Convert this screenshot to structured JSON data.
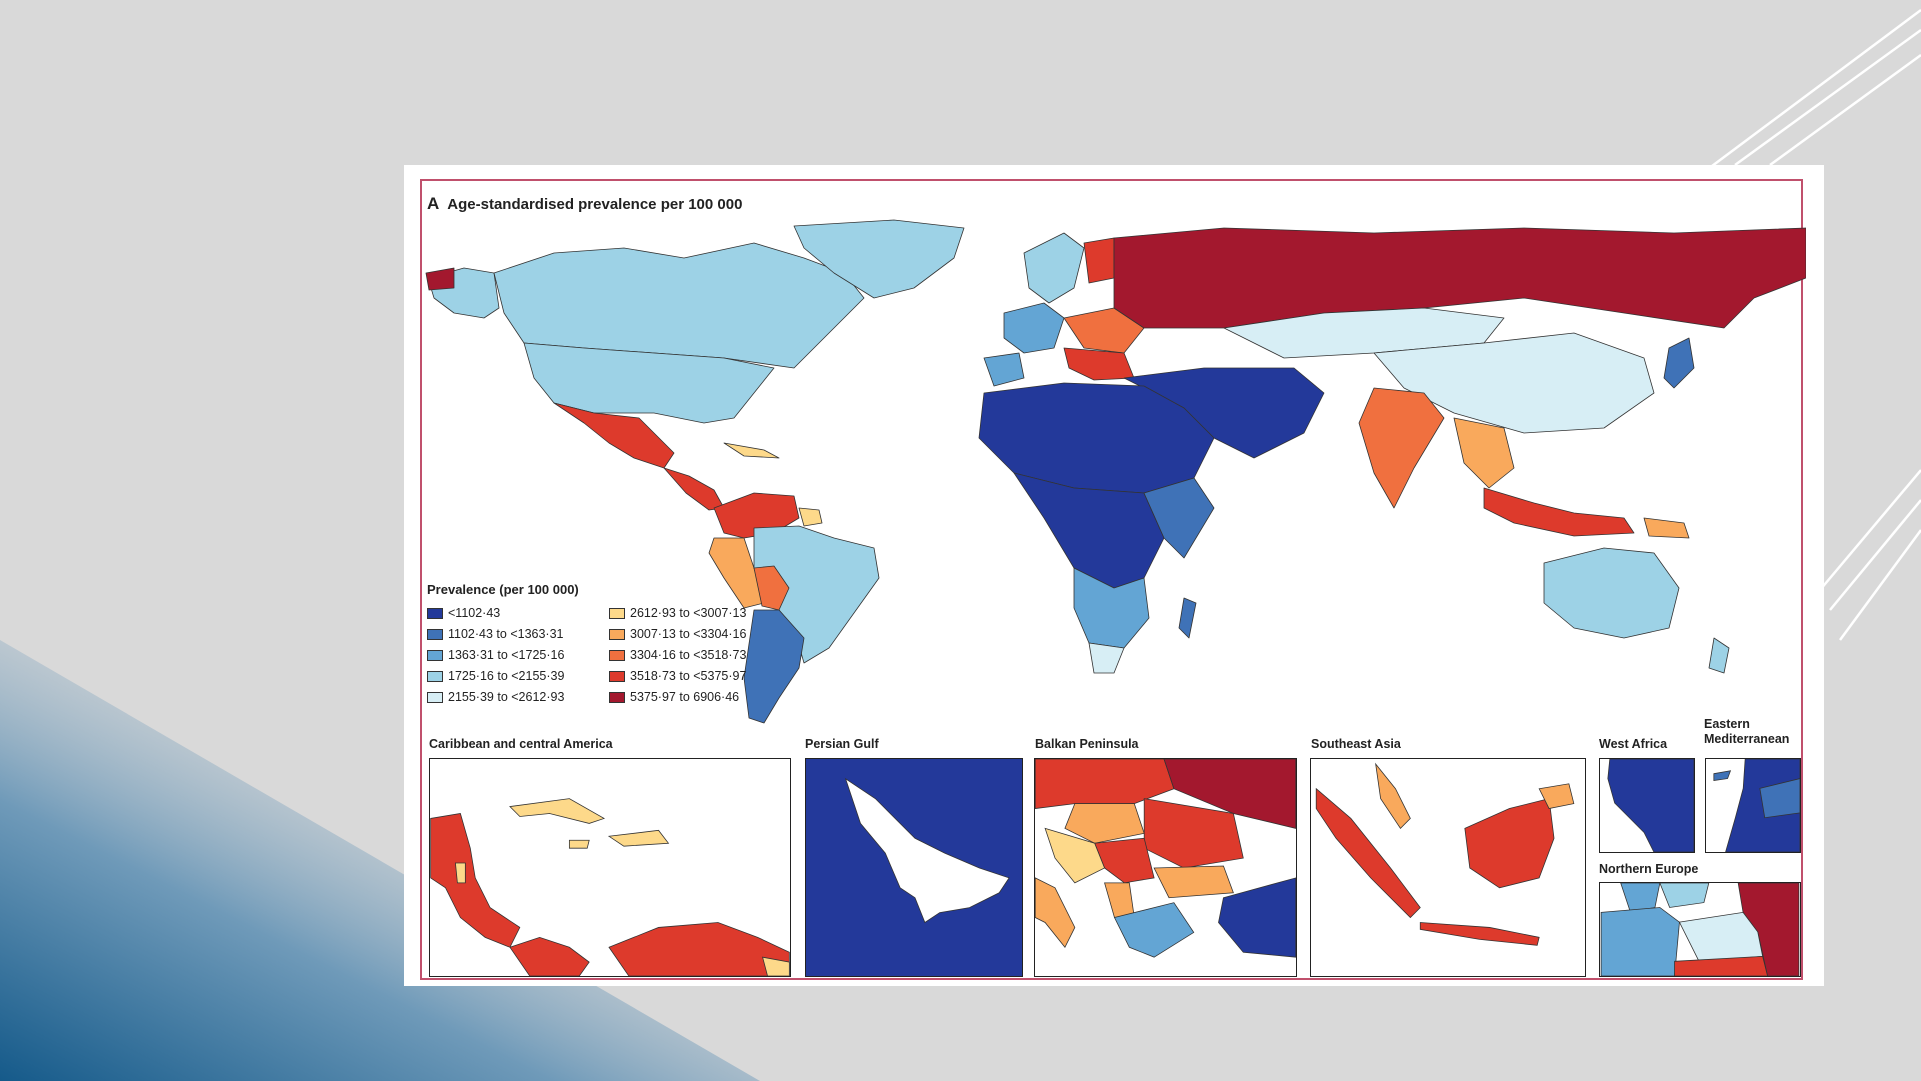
{
  "figure": {
    "panel_letter": "A",
    "title": "Age-standardised prevalence per 100 000"
  },
  "legend": {
    "title": "Prevalence (per 100 000)",
    "items": [
      {
        "label": "<1102·43",
        "color": "#23399a"
      },
      {
        "label": "1102·43 to <1363·31",
        "color": "#3f72b7"
      },
      {
        "label": "1363·31 to <1725·16",
        "color": "#63a5d4"
      },
      {
        "label": "1725·16 to <2155·39",
        "color": "#9dd2e6"
      },
      {
        "label": "2155·39 to <2612·93",
        "color": "#d7eef5"
      },
      {
        "label": "2612·93 to <3007·13",
        "color": "#fdd98a"
      },
      {
        "label": "3007·13 to <3304·16",
        "color": "#f9a95c"
      },
      {
        "label": "3304·16 to <3518·73",
        "color": "#f0703f"
      },
      {
        "label": "3518·73 to <5375·97",
        "color": "#dd3a2c"
      },
      {
        "label": "5375·97 to 6906·46",
        "color": "#a3182e"
      }
    ]
  },
  "insets": [
    {
      "title": "Caribbean and central America"
    },
    {
      "title": "Persian Gulf"
    },
    {
      "title": "Balkan Peninsula"
    },
    {
      "title": "Southeast Asia"
    },
    {
      "title": "West Africa"
    },
    {
      "title": "Eastern Mediterranean"
    },
    {
      "title": "Northern Europe"
    }
  ],
  "colors": {
    "frame": "#c0506c",
    "ocean": "#ffffff",
    "slide_background": "#d9d9d9",
    "corner_gradient": "#1d5e8f"
  }
}
